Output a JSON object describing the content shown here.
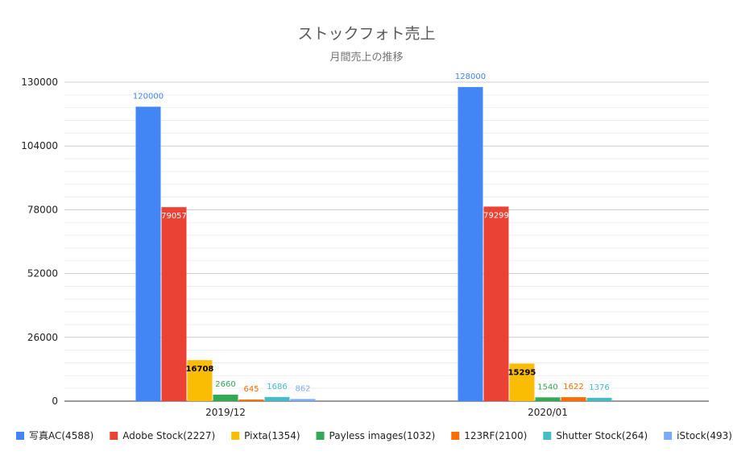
{
  "chart_data": {
    "type": "bar",
    "title": "ストックフォト売上",
    "subtitle": "月間売上の推移",
    "xlabel": "",
    "ylabel": "",
    "ylim": [
      0,
      130000
    ],
    "yticks": [
      0,
      26000,
      52000,
      78000,
      104000,
      130000
    ],
    "grid": true,
    "legend_position": "bottom",
    "categories": [
      "2019/12",
      "2020/01"
    ],
    "series": [
      {
        "name": "写真AC(4588)",
        "color": "#4285f4",
        "label_color": "#4285f4",
        "values": [
          120000,
          128000
        ],
        "labels": [
          "120000",
          "128000"
        ]
      },
      {
        "name": "Adobe Stock(2227)",
        "color": "#ea4335",
        "label_color": "#ffffff",
        "values": [
          79057,
          79299
        ],
        "labels": [
          "79057",
          "79299"
        ]
      },
      {
        "name": "Pixta(1354)",
        "color": "#fbbc04",
        "label_color": "#000000",
        "values": [
          16708,
          15295
        ],
        "labels": [
          "16708",
          "15295"
        ]
      },
      {
        "name": "Payless images(1032)",
        "color": "#34a853",
        "label_color": "#34a853",
        "values": [
          2660,
          1540
        ],
        "labels": [
          "2660",
          "1540"
        ]
      },
      {
        "name": "123RF(2100)",
        "color": "#ff6d01",
        "label_color": "#ff6d01",
        "values": [
          645,
          1622
        ],
        "labels": [
          "645",
          "1622"
        ]
      },
      {
        "name": "Shutter Stock(264)",
        "color": "#46bdc6",
        "label_color": "#46bdc6",
        "values": [
          1686,
          1376
        ],
        "labels": [
          "1686",
          "1376"
        ]
      },
      {
        "name": "iStock(493)",
        "color": "#7baaf7",
        "label_color": "#7baaf7",
        "values": [
          862,
          0
        ],
        "labels": [
          "862",
          ""
        ]
      }
    ]
  }
}
